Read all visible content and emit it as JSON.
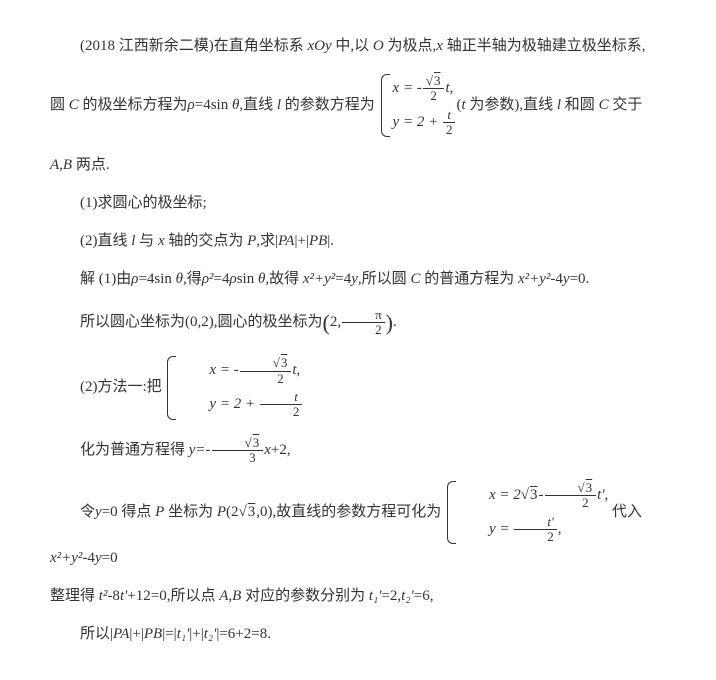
{
  "p1a": "(2018 江西新余二模)在直角坐标系 ",
  "p1b": " 中,以 ",
  "p1c": " 为极点,",
  "p1d": " 轴正半轴为极轴建立极坐标系,",
  "p2a": "圆 ",
  "p2b": " 的极坐标方程为",
  "p2c": "=4sin ",
  "p2d": ",直线 ",
  "p2e": " 的参数方程为",
  "p2f": "(",
  "p2g": " 为参数),直线 ",
  "p2h": " 和圆 ",
  "p2i": " 交于",
  "p3": " 两点.",
  "q1": "(1)求圆心的极坐标;",
  "q2a": "(2)直线 ",
  "q2b": " 与 ",
  "q2c": " 轴的交点为 ",
  "q2d": ",求|",
  "q2e": "|+|",
  "q2f": "|.",
  "s1a": "解 (1)由",
  "s1b": "=4sin ",
  "s1c": ",得",
  "s1d": "=4",
  "s1e": "sin ",
  "s1f": ",故得 ",
  "s1g": "=4",
  "s1h": ",所以圆 ",
  "s1i": " 的普通方程为 ",
  "s1j": "-4",
  "s1k": "=0.",
  "s2a": "所以圆心坐标为(0,2),圆心的极坐标为",
  "s3": "(2)方法一:把",
  "s4a": "化为普通方程得 ",
  "s4b": "+2,",
  "s5a": "令",
  "s5b": "=0 得点 ",
  "s5c": " 坐标为 ",
  "s5d": "(2",
  "s5e": ",0),故直线的参数方程可化为",
  "s5f": "代入 ",
  "s5g": "-4",
  "s5h": "=0",
  "s6a": "整理得 ",
  "s6b": "-8",
  "s6c": "+12=0,所以点 ",
  "s6d": " 对应的参数分别为 ",
  "s6e": "=2,",
  "s6f": "=6,",
  "s7a": "所以|",
  "s7b": "|+|",
  "s7c": "|=|",
  "s7d": "|+|",
  "s7e": "|=6+2=8.",
  "sym": {
    "xOy": "xOy",
    "O": "O",
    "x": "x",
    "C": "C",
    "rho": "ρ",
    "theta": "θ",
    "l": "l",
    "t": "t",
    "AB": "A,B",
    "P": "P",
    "PA": "PA",
    "PB": "PB",
    "y": "y",
    "xy2": "x²+y²",
    "rho2": "ρ²",
    "yeq": "y=-",
    "t2": "t²",
    "tp": "t'",
    "t1p": "t₁'",
    "t2p": "t₂'",
    "sqrt3": "3",
    "xeq": "x = -",
    "yeq2": "y = 2 + ",
    "xeq2": "x = 2",
    "yeq3": "y = ",
    "minus": "-",
    "comma": ",",
    "tprime_half_num": "t'",
    "two": "2",
    "pi": "π",
    "tnum": "t"
  }
}
